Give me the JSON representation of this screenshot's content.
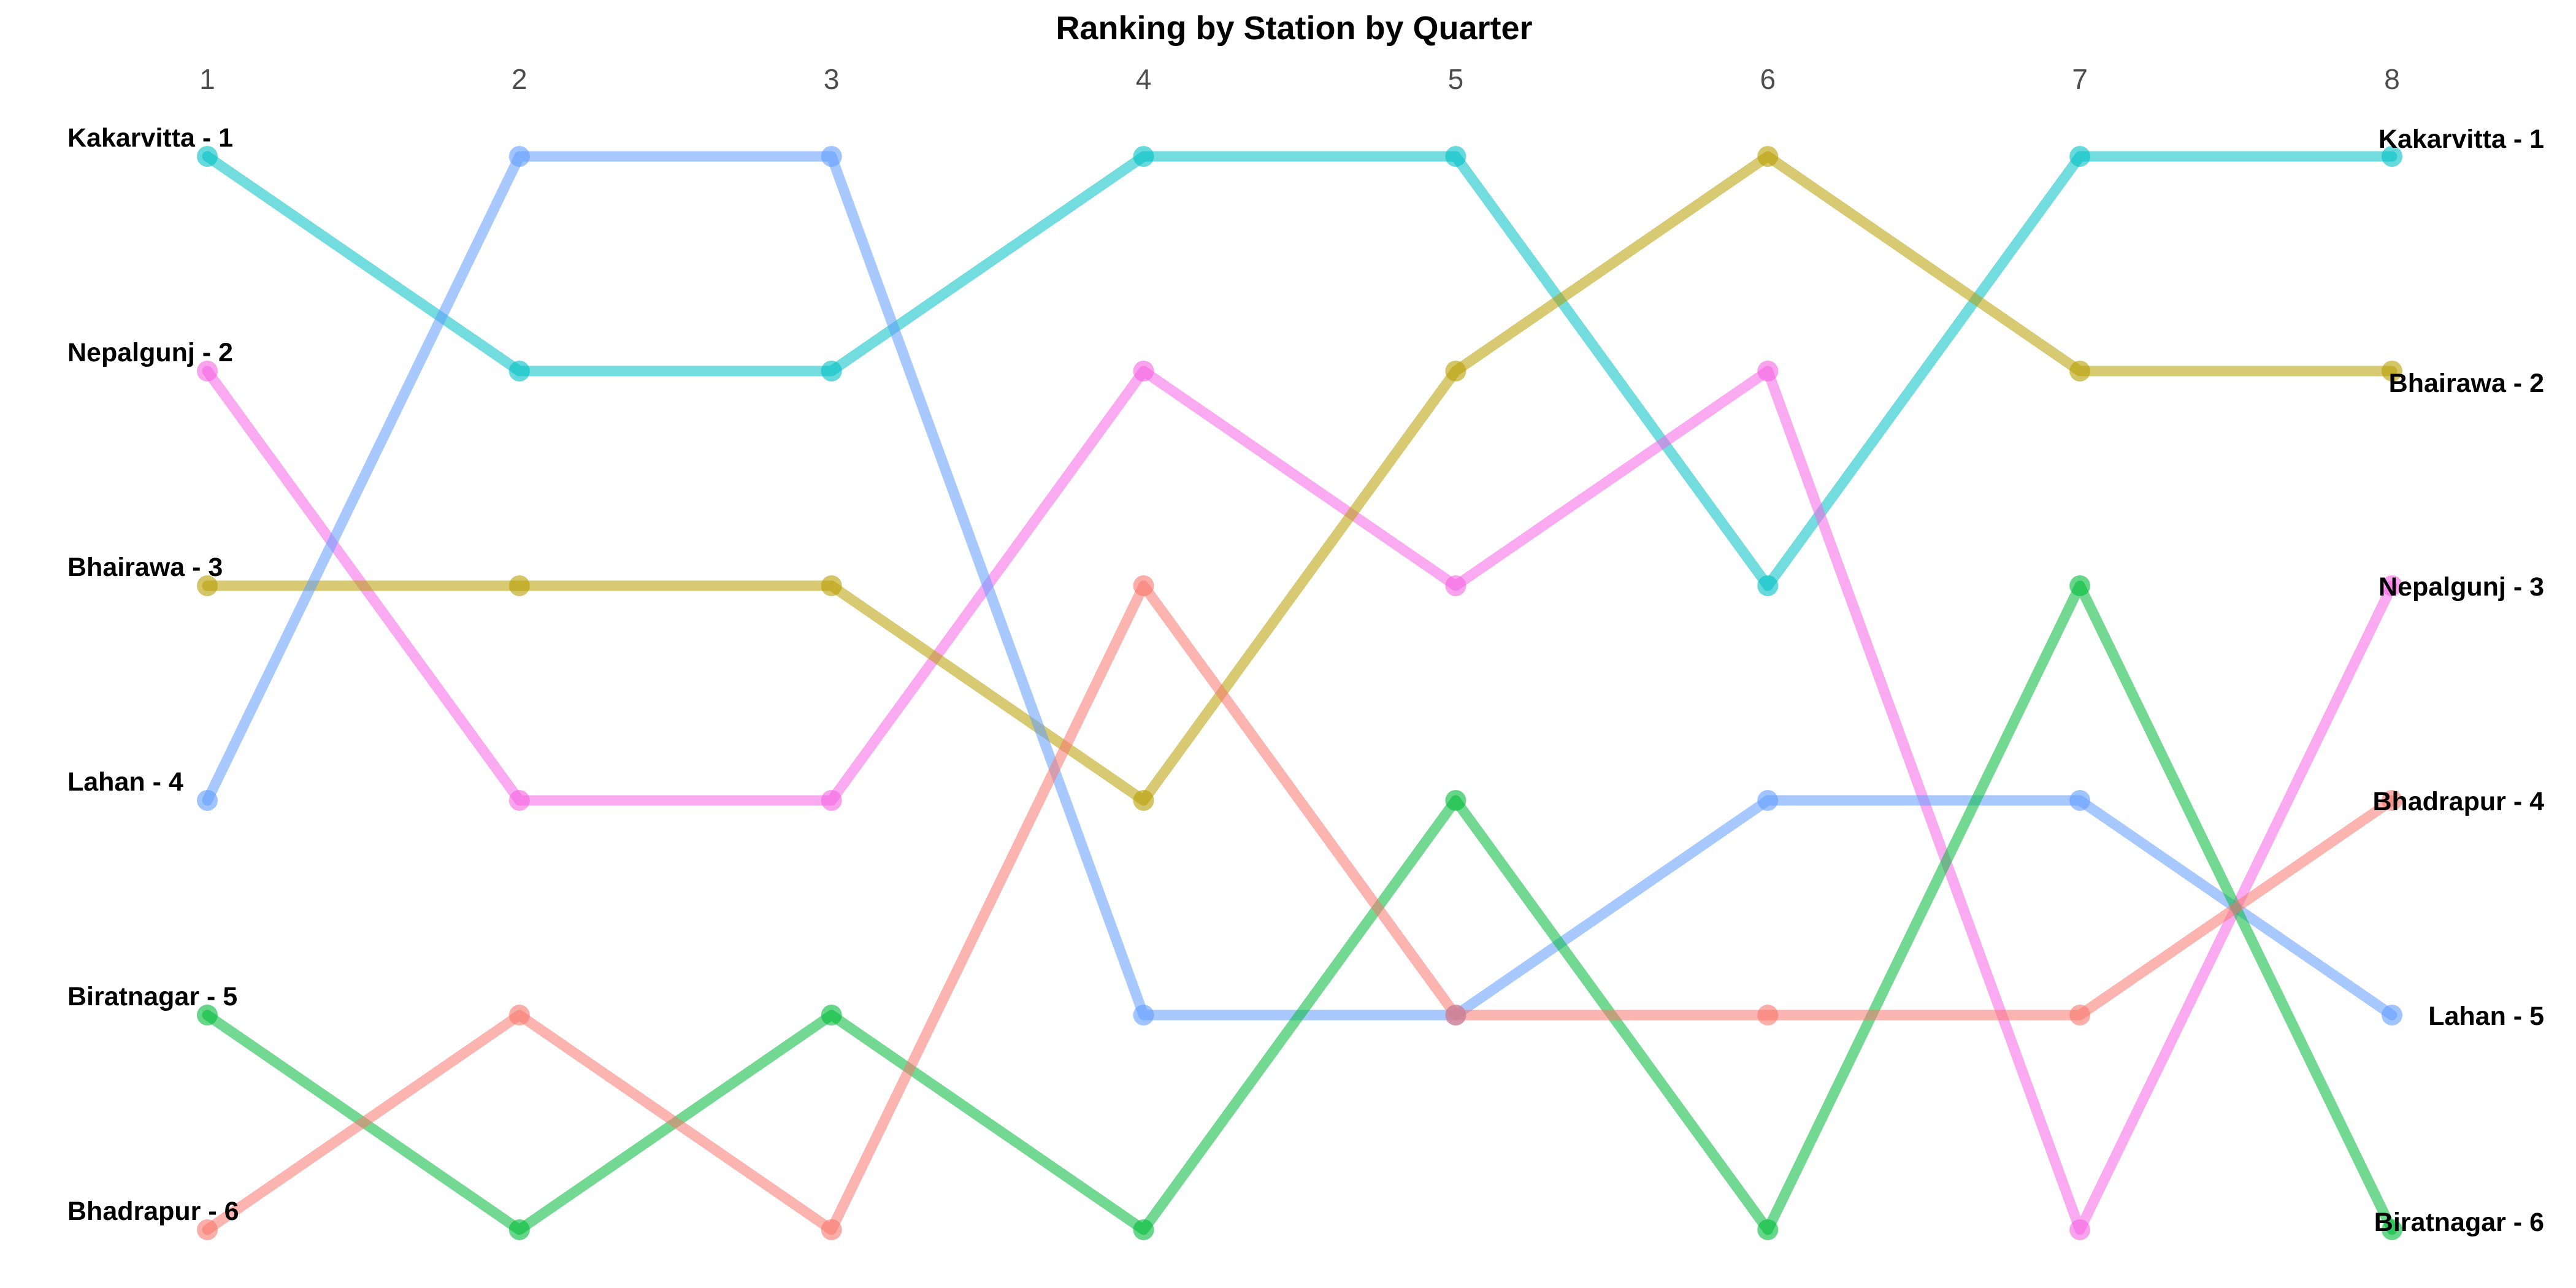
{
  "chart_data": {
    "type": "line",
    "title": "Ranking by Station by Quarter",
    "xlabel": "",
    "ylabel": "",
    "x": [
      1,
      2,
      3,
      4,
      5,
      6,
      7,
      8
    ],
    "ylim": [
      1,
      6
    ],
    "y_reversed": true,
    "grid": false,
    "legend": "none",
    "series": [
      {
        "name": "Kakarvitta",
        "color": "#00BFC4",
        "ranks": [
          1,
          2,
          2,
          1,
          1,
          3,
          1,
          1
        ]
      },
      {
        "name": "Nepalgunj",
        "color": "#F564E3",
        "ranks": [
          2,
          4,
          4,
          2,
          3,
          2,
          6,
          3
        ]
      },
      {
        "name": "Bhairawa",
        "color": "#B79F00",
        "ranks": [
          3,
          3,
          3,
          4,
          2,
          1,
          2,
          2
        ]
      },
      {
        "name": "Lahan",
        "color": "#619CFF",
        "ranks": [
          4,
          1,
          1,
          5,
          5,
          4,
          4,
          5
        ]
      },
      {
        "name": "Biratnagar",
        "color": "#00BA38",
        "ranks": [
          5,
          6,
          5,
          6,
          4,
          6,
          3,
          6
        ]
      },
      {
        "name": "Bhadrapur",
        "color": "#F8766D",
        "ranks": [
          6,
          5,
          6,
          3,
          5,
          5,
          5,
          4
        ]
      }
    ],
    "start_labels": [
      "Kakarvitta - 1",
      "Nepalgunj - 2",
      "Bhairawa - 3",
      "Lahan - 4",
      "Biratnagar - 5",
      "Bhadrapur - 6"
    ],
    "end_labels": [
      "Kakarvitta - 1",
      "Bhairawa - 2",
      "Nepalgunj - 3",
      "Bhadrapur - 4",
      "Lahan - 5",
      "Biratnagar - 6"
    ]
  }
}
